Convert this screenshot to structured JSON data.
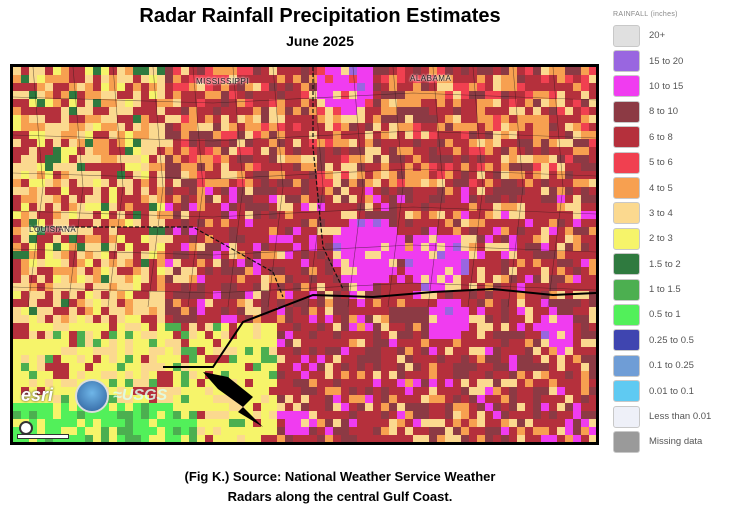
{
  "header": {
    "title": "Radar Rainfall Precipitation Estimates",
    "subtitle": "June 2025"
  },
  "map": {
    "state_labels": [
      {
        "key": "ms",
        "text": "MISSISSIPPI"
      },
      {
        "key": "al",
        "text": "ALABAMA"
      },
      {
        "key": "la",
        "text": "LOUISIANA"
      }
    ],
    "attribution": {
      "esri": "esri",
      "usgs": "≈USGS"
    }
  },
  "caption": {
    "line1": "(Fig K.) Source: National Weather Service Weather",
    "line2": "Radars along the central Gulf Coast."
  },
  "legend": {
    "title": "RAINFALL (inches)",
    "items": [
      {
        "label": "20+",
        "color": "#e0e0e0"
      },
      {
        "label": "15 to 20",
        "color": "#9966e0"
      },
      {
        "label": "10 to 15",
        "color": "#f03cf0"
      },
      {
        "label": "8 to 10",
        "color": "#8c3a44"
      },
      {
        "label": "6 to 8",
        "color": "#b5303c"
      },
      {
        "label": "5 to 6",
        "color": "#f04050"
      },
      {
        "label": "4 to 5",
        "color": "#f7a050"
      },
      {
        "label": "3 to 4",
        "color": "#fbd98f"
      },
      {
        "label": "2 to 3",
        "color": "#f6f46a"
      },
      {
        "label": "1.5 to 2",
        "color": "#2f7a3f"
      },
      {
        "label": "1 to 1.5",
        "color": "#4caf50"
      },
      {
        "label": "0.5 to 1",
        "color": "#52f05a"
      },
      {
        "label": "0.25 to 0.5",
        "color": "#3f45b0"
      },
      {
        "label": "0.1 to 0.25",
        "color": "#6f9dd6"
      },
      {
        "label": "0.01 to 0.1",
        "color": "#5fcaf2"
      },
      {
        "label": "Less than 0.01",
        "color": "#eef0f8"
      },
      {
        "label": "Missing data",
        "color": "#9a9a9a"
      }
    ]
  }
}
